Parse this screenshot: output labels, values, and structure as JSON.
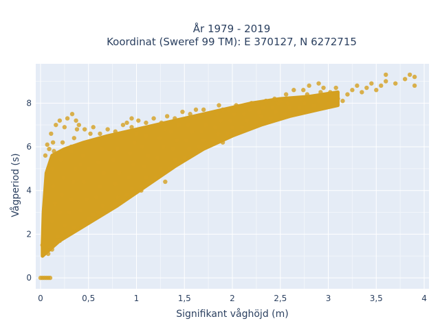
{
  "chart_data": {
    "type": "scatter",
    "title_line1": "År 1979 - 2019",
    "title_line2": "Koordinat (Sweref 99 TM): E 370127, N 6272715",
    "xlabel": "Signifikant våghöjd (m)",
    "ylabel": "Vågperiod (s)",
    "xlim": [
      -0.05,
      4.05
    ],
    "ylim": [
      -0.5,
      9.8
    ],
    "xticks": [
      0,
      0.5,
      1,
      1.5,
      2,
      2.5,
      3,
      3.5,
      4
    ],
    "xtick_labels": [
      "0",
      "0,5",
      "1",
      "1,5",
      "2",
      "2,5",
      "3",
      "3,5",
      "4"
    ],
    "yticks": [
      0,
      2,
      4,
      6,
      8
    ],
    "ytick_labels": [
      "0",
      "2",
      "4",
      "6",
      "8"
    ],
    "grid": true,
    "marker_color": "#d4a020",
    "plot_background": "#e5ecf6",
    "series": [
      {
        "points": [
          [
            0.0,
            0
          ],
          [
            0.02,
            0
          ],
          [
            0.04,
            0
          ],
          [
            0.06,
            0
          ],
          [
            0.08,
            0
          ],
          [
            0.1,
            0
          ],
          [
            0.02,
            1.5
          ],
          [
            0.03,
            1.9
          ],
          [
            0.05,
            2.3
          ],
          [
            0.06,
            1.2
          ],
          [
            0.08,
            1.1
          ],
          [
            0.1,
            1.4
          ],
          [
            0.05,
            2.8
          ],
          [
            0.04,
            3.2
          ],
          [
            0.07,
            3.6
          ],
          [
            0.06,
            4.4
          ],
          [
            0.08,
            5.0
          ],
          [
            0.05,
            5.6
          ],
          [
            0.07,
            6.1
          ],
          [
            0.09,
            5.9
          ],
          [
            0.06,
            3.8
          ],
          [
            0.12,
            1.3
          ],
          [
            0.15,
            1.6
          ],
          [
            0.18,
            1.9
          ],
          [
            0.12,
            2.6
          ],
          [
            0.15,
            3.4
          ],
          [
            0.13,
            4.2
          ],
          [
            0.12,
            5.0
          ],
          [
            0.14,
            5.8
          ],
          [
            0.11,
            6.6
          ],
          [
            0.16,
            7.0
          ],
          [
            0.13,
            6.2
          ],
          [
            0.2,
            1.7
          ],
          [
            0.22,
            2.1
          ],
          [
            0.25,
            2.4
          ],
          [
            0.2,
            3.0
          ],
          [
            0.22,
            3.8
          ],
          [
            0.24,
            4.6
          ],
          [
            0.21,
            5.4
          ],
          [
            0.23,
            6.2
          ],
          [
            0.25,
            6.9
          ],
          [
            0.28,
            7.3
          ],
          [
            0.33,
            7.5
          ],
          [
            0.2,
            7.2
          ],
          [
            0.3,
            2.0
          ],
          [
            0.35,
            2.3
          ],
          [
            0.3,
            3.0
          ],
          [
            0.32,
            3.6
          ],
          [
            0.34,
            4.4
          ],
          [
            0.36,
            5.0
          ],
          [
            0.32,
            5.8
          ],
          [
            0.35,
            6.4
          ],
          [
            0.38,
            6.8
          ],
          [
            0.32,
            6.0
          ],
          [
            0.4,
            7.0
          ],
          [
            0.37,
            7.2
          ],
          [
            0.45,
            2.4
          ],
          [
            0.5,
            2.7
          ],
          [
            0.42,
            3.1
          ],
          [
            0.48,
            3.6
          ],
          [
            0.45,
            4.4
          ],
          [
            0.5,
            5.0
          ],
          [
            0.44,
            5.6
          ],
          [
            0.48,
            6.2
          ],
          [
            0.52,
            6.6
          ],
          [
            0.46,
            6.8
          ],
          [
            0.55,
            6.9
          ],
          [
            0.6,
            3.0
          ],
          [
            0.65,
            3.3
          ],
          [
            0.58,
            3.7
          ],
          [
            0.62,
            4.2
          ],
          [
            0.66,
            4.8
          ],
          [
            0.6,
            5.3
          ],
          [
            0.64,
            5.9
          ],
          [
            0.68,
            6.4
          ],
          [
            0.62,
            6.6
          ],
          [
            0.7,
            6.8
          ],
          [
            0.75,
            3.3
          ],
          [
            0.8,
            3.7
          ],
          [
            0.78,
            4.3
          ],
          [
            0.82,
            4.8
          ],
          [
            0.76,
            5.4
          ],
          [
            0.8,
            5.9
          ],
          [
            0.84,
            6.4
          ],
          [
            0.78,
            6.7
          ],
          [
            0.86,
            7.0
          ],
          [
            0.9,
            7.1
          ],
          [
            0.9,
            3.8
          ],
          [
            0.95,
            4.1
          ],
          [
            0.92,
            4.6
          ],
          [
            0.97,
            5.2
          ],
          [
            0.93,
            5.7
          ],
          [
            0.98,
            6.2
          ],
          [
            1.0,
            6.6
          ],
          [
            0.95,
            6.9
          ],
          [
            1.02,
            7.2
          ],
          [
            1.05,
            4.2
          ],
          [
            1.1,
            4.6
          ],
          [
            1.08,
            5.1
          ],
          [
            1.12,
            5.6
          ],
          [
            1.06,
            6.0
          ],
          [
            1.1,
            6.5
          ],
          [
            1.14,
            6.9
          ],
          [
            1.1,
            7.1
          ],
          [
            1.18,
            7.3
          ],
          [
            1.2,
            4.6
          ],
          [
            1.25,
            5.0
          ],
          [
            1.22,
            5.5
          ],
          [
            1.28,
            6.0
          ],
          [
            1.24,
            6.4
          ],
          [
            1.3,
            6.8
          ],
          [
            1.26,
            7.1
          ],
          [
            1.32,
            7.4
          ],
          [
            1.35,
            5.0
          ],
          [
            1.4,
            5.4
          ],
          [
            1.38,
            5.9
          ],
          [
            1.42,
            6.3
          ],
          [
            1.36,
            6.7
          ],
          [
            1.44,
            7.0
          ],
          [
            1.4,
            7.3
          ],
          [
            1.48,
            7.6
          ],
          [
            1.5,
            5.5
          ],
          [
            1.55,
            5.9
          ],
          [
            1.52,
            6.3
          ],
          [
            1.58,
            6.7
          ],
          [
            1.54,
            7.0
          ],
          [
            1.6,
            7.3
          ],
          [
            1.56,
            7.5
          ],
          [
            1.62,
            7.7
          ],
          [
            1.65,
            6.0
          ],
          [
            1.7,
            6.3
          ],
          [
            1.68,
            6.7
          ],
          [
            1.72,
            7.0
          ],
          [
            1.66,
            7.3
          ],
          [
            1.74,
            7.5
          ],
          [
            1.7,
            7.7
          ],
          [
            1.8,
            6.3
          ],
          [
            1.85,
            6.6
          ],
          [
            1.82,
            6.9
          ],
          [
            1.88,
            7.2
          ],
          [
            1.84,
            7.5
          ],
          [
            1.9,
            7.7
          ],
          [
            1.86,
            7.9
          ],
          [
            1.95,
            6.6
          ],
          [
            2.0,
            6.9
          ],
          [
            1.98,
            7.2
          ],
          [
            2.02,
            7.5
          ],
          [
            1.96,
            7.7
          ],
          [
            2.04,
            7.9
          ],
          [
            2.1,
            6.9
          ],
          [
            2.15,
            7.2
          ],
          [
            2.12,
            7.5
          ],
          [
            2.18,
            7.7
          ],
          [
            2.14,
            7.9
          ],
          [
            2.2,
            8.0
          ],
          [
            2.25,
            7.1
          ],
          [
            2.3,
            7.4
          ],
          [
            2.28,
            7.6
          ],
          [
            2.32,
            7.8
          ],
          [
            2.26,
            8.0
          ],
          [
            2.35,
            8.1
          ],
          [
            2.4,
            7.3
          ],
          [
            2.45,
            7.6
          ],
          [
            2.42,
            7.8
          ],
          [
            2.48,
            8.0
          ],
          [
            2.44,
            8.2
          ],
          [
            2.5,
            8.1
          ],
          [
            2.55,
            7.5
          ],
          [
            2.6,
            7.8
          ],
          [
            2.58,
            8.0
          ],
          [
            2.62,
            8.2
          ],
          [
            2.56,
            8.4
          ],
          [
            2.64,
            8.6
          ],
          [
            2.7,
            7.8
          ],
          [
            2.75,
            8.0
          ],
          [
            2.72,
            8.2
          ],
          [
            2.78,
            8.4
          ],
          [
            2.74,
            8.6
          ],
          [
            2.8,
            8.8
          ],
          [
            2.85,
            7.9
          ],
          [
            2.9,
            8.1
          ],
          [
            2.88,
            8.3
          ],
          [
            2.92,
            8.5
          ],
          [
            2.95,
            8.7
          ],
          [
            2.9,
            8.9
          ],
          [
            3.0,
            8.0
          ],
          [
            3.05,
            8.3
          ],
          [
            3.02,
            8.5
          ],
          [
            3.08,
            8.7
          ],
          [
            3.1,
            8.2
          ],
          [
            3.15,
            8.1
          ],
          [
            3.2,
            8.4
          ],
          [
            3.25,
            8.6
          ],
          [
            3.3,
            8.8
          ],
          [
            3.35,
            8.5
          ],
          [
            3.4,
            8.7
          ],
          [
            3.45,
            8.9
          ],
          [
            3.5,
            8.6
          ],
          [
            3.55,
            8.8
          ],
          [
            3.6,
            9.0
          ],
          [
            3.7,
            8.9
          ],
          [
            3.8,
            9.1
          ],
          [
            3.85,
            9.3
          ],
          [
            3.9,
            9.2
          ],
          [
            3.6,
            9.3
          ],
          [
            3.9,
            8.8
          ],
          [
            1.05,
            4.0
          ],
          [
            0.78,
            3.4
          ],
          [
            0.55,
            2.9
          ],
          [
            1.3,
            4.4
          ],
          [
            0.42,
            5.2
          ],
          [
            0.95,
            7.3
          ],
          [
            1.9,
            6.2
          ]
        ]
      }
    ]
  }
}
